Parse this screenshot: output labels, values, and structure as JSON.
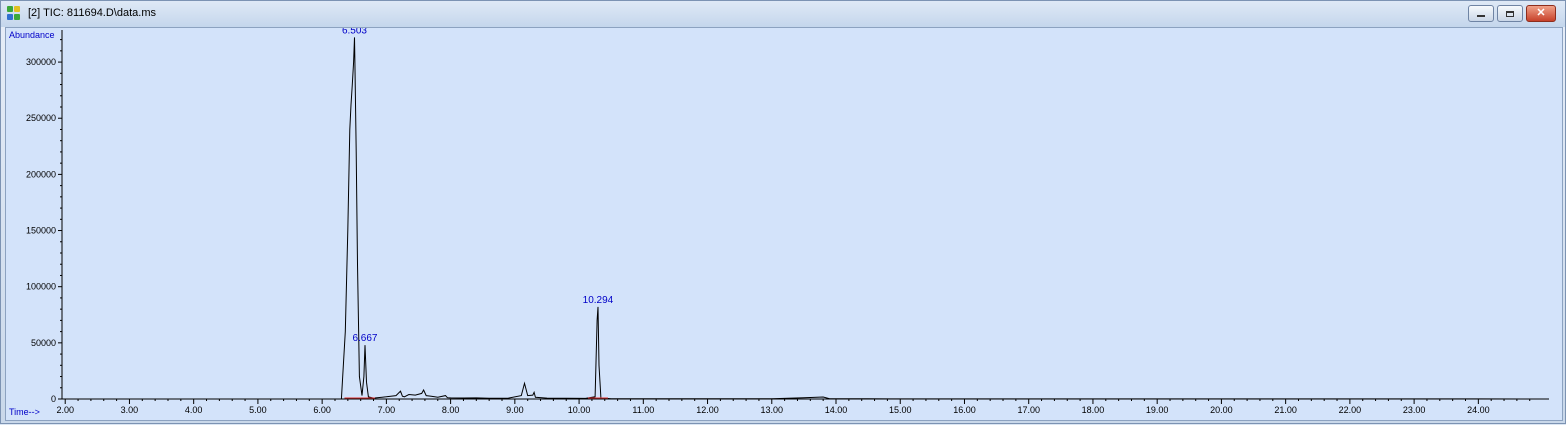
{
  "window": {
    "title": "[2] TIC: 811694.D\\data.ms",
    "icon": "chromatogram-app-icon",
    "controls": [
      "minimize-icon",
      "maximize-icon",
      "close-icon"
    ]
  },
  "colors": {
    "plot_background": "#d3e3fa",
    "trace": "#000000",
    "peak_label": "#0000c8",
    "axis_label": "#0000c8",
    "baseline_marker": "#e03030"
  },
  "chart_data": {
    "type": "line",
    "ylabel": "Abundance",
    "xlabel": "Time-->",
    "xlim": [
      1.95,
      25.1
    ],
    "ylim": [
      0,
      325000
    ],
    "x_ticks": [
      "2.00",
      "3.00",
      "4.00",
      "5.00",
      "6.00",
      "7.00",
      "8.00",
      "9.00",
      "10.00",
      "11.00",
      "12.00",
      "13.00",
      "14.00",
      "15.00",
      "16.00",
      "17.00",
      "18.00",
      "19.00",
      "20.00",
      "21.00",
      "22.00",
      "23.00",
      "24.00"
    ],
    "y_ticks": [
      "0",
      "50000",
      "100000",
      "150000",
      "200000",
      "250000",
      "300000"
    ],
    "peak_labels": [
      {
        "label": "6.503",
        "x": 6.503,
        "y": 322000
      },
      {
        "label": "6.667",
        "x": 6.667,
        "y": 48000
      },
      {
        "label": "10.294",
        "x": 10.294,
        "y": 82000
      }
    ],
    "series": [
      {
        "x": [
          1.95,
          6.3,
          6.36,
          6.4,
          6.43,
          6.45,
          6.47,
          6.49,
          6.503,
          6.51,
          6.53,
          6.55,
          6.58,
          6.62,
          6.65,
          6.667,
          6.69,
          6.72,
          6.8,
          7.0,
          7.15,
          7.22,
          7.25,
          7.28,
          7.35,
          7.45,
          7.55,
          7.58,
          7.62,
          7.7,
          7.8,
          7.92,
          7.95,
          8.0,
          8.2,
          8.4,
          8.6,
          8.9,
          9.1,
          9.15,
          9.2,
          9.28,
          9.3,
          9.32,
          9.5,
          9.8,
          10.1,
          10.25,
          10.28,
          10.294,
          10.31,
          10.34,
          10.5,
          11.0,
          12.0,
          13.0,
          13.5,
          13.8,
          13.9,
          14.5,
          16.0,
          18.0,
          20.0,
          22.0,
          24.0,
          25.1
        ],
        "y": [
          0,
          0,
          60000,
          150000,
          240000,
          262000,
          280000,
          300000,
          322000,
          300000,
          220000,
          120000,
          20000,
          3000,
          20000,
          48000,
          15000,
          2000,
          800,
          2000,
          3000,
          7000,
          2500,
          2000,
          4000,
          3500,
          5000,
          8000,
          3000,
          2500,
          1500,
          3000,
          1200,
          1000,
          900,
          1000,
          700,
          800,
          3000,
          14000,
          3000,
          3500,
          6000,
          1500,
          800,
          600,
          500,
          2000,
          70000,
          82000,
          30000,
          1000,
          300,
          200,
          300,
          200,
          1200,
          1800,
          300,
          200,
          100,
          100,
          100,
          100,
          100,
          0
        ]
      }
    ]
  }
}
